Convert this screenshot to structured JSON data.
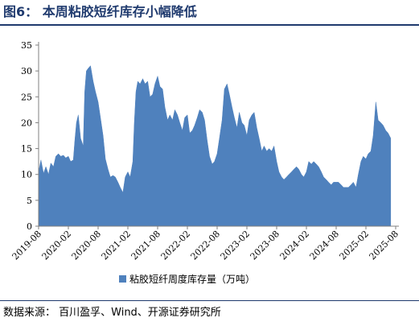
{
  "figure": {
    "title": "图6：  本周粘胶短纤库存小幅降低",
    "source": "数据来源：  百川盈孚、Wind、开源证券研究所"
  },
  "colors": {
    "series": "#4f81bd",
    "title": "#1f3a6e",
    "axis": "#808080"
  },
  "chart_data": {
    "type": "area",
    "title": "",
    "xlabel": "",
    "ylabel": "",
    "ylim": [
      0,
      35
    ],
    "yticks": [
      0,
      5,
      10,
      15,
      20,
      25,
      30,
      35
    ],
    "xlim": [
      "2019-08",
      "2025-08"
    ],
    "xticks": [
      "2019-08",
      "2020-02",
      "2020-08",
      "2021-02",
      "2021-08",
      "2022-02",
      "2022-08",
      "2023-02",
      "2023-08",
      "2024-02",
      "2024-08",
      "2025-02",
      "2025-08"
    ],
    "grid": false,
    "legend_position": "bottom",
    "series": [
      {
        "name": "粘胶短纤周度库存量（万吨）",
        "points": [
          [
            "2019-08",
            10.5
          ],
          [
            "2019-08-15",
            12.8
          ],
          [
            "2019-09",
            10.2
          ],
          [
            "2019-09-15",
            11.5
          ],
          [
            "2019-10",
            10.0
          ],
          [
            "2019-10-15",
            12.2
          ],
          [
            "2019-11",
            11.5
          ],
          [
            "2019-11-15",
            13.5
          ],
          [
            "2019-12",
            14.0
          ],
          [
            "2019-12-15",
            13.5
          ],
          [
            "2020-01",
            13.7
          ],
          [
            "2020-01-15",
            13.2
          ],
          [
            "2020-02",
            13.5
          ],
          [
            "2020-02-15",
            12.5
          ],
          [
            "2020-03",
            12.8
          ],
          [
            "2020-03-10",
            16.5
          ],
          [
            "2020-03-20",
            20.0
          ],
          [
            "2020-04",
            21.5
          ],
          [
            "2020-04-15",
            17.0
          ],
          [
            "2020-05",
            15.5
          ],
          [
            "2020-05-10",
            26.0
          ],
          [
            "2020-05-20",
            30.0
          ],
          [
            "2020-06",
            30.5
          ],
          [
            "2020-06-15",
            31.0
          ],
          [
            "2020-07",
            28.0
          ],
          [
            "2020-07-15",
            26.0
          ],
          [
            "2020-08",
            24.0
          ],
          [
            "2020-08-15",
            21.0
          ],
          [
            "2020-09",
            17.5
          ],
          [
            "2020-09-15",
            13.0
          ],
          [
            "2020-10",
            11.0
          ],
          [
            "2020-10-15",
            9.5
          ],
          [
            "2020-11",
            9.8
          ],
          [
            "2020-11-15",
            9.5
          ],
          [
            "2020-12",
            8.5
          ],
          [
            "2020-12-15",
            7.5
          ],
          [
            "2021-01",
            6.5
          ],
          [
            "2021-01-15",
            9.5
          ],
          [
            "2021-02",
            10.5
          ],
          [
            "2021-02-15",
            9.5
          ],
          [
            "2021-03",
            12.5
          ],
          [
            "2021-03-10",
            20.0
          ],
          [
            "2021-03-20",
            26.0
          ],
          [
            "2021-04",
            28.0
          ],
          [
            "2021-04-15",
            27.5
          ],
          [
            "2021-05",
            28.5
          ],
          [
            "2021-05-15",
            27.5
          ],
          [
            "2021-06",
            28.0
          ],
          [
            "2021-06-15",
            25.0
          ],
          [
            "2021-07",
            25.5
          ],
          [
            "2021-07-15",
            27.5
          ],
          [
            "2021-08",
            29.0
          ],
          [
            "2021-08-15",
            27.0
          ],
          [
            "2021-09",
            26.5
          ],
          [
            "2021-09-15",
            23.0
          ],
          [
            "2021-10",
            20.5
          ],
          [
            "2021-10-15",
            21.5
          ],
          [
            "2021-11",
            20.5
          ],
          [
            "2021-11-15",
            22.5
          ],
          [
            "2021-12",
            21.5
          ],
          [
            "2021-12-15",
            20.0
          ],
          [
            "2022-01",
            18.5
          ],
          [
            "2022-01-15",
            21.0
          ],
          [
            "2022-02",
            21.5
          ],
          [
            "2022-02-15",
            18.0
          ],
          [
            "2022-03",
            18.5
          ],
          [
            "2022-03-15",
            19.5
          ],
          [
            "2022-04",
            21.0
          ],
          [
            "2022-04-15",
            22.5
          ],
          [
            "2022-05",
            22.0
          ],
          [
            "2022-05-15",
            20.5
          ],
          [
            "2022-06",
            16.5
          ],
          [
            "2022-06-15",
            13.5
          ],
          [
            "2022-07",
            12.0
          ],
          [
            "2022-07-15",
            12.5
          ],
          [
            "2022-08",
            14.0
          ],
          [
            "2022-08-15",
            17.0
          ],
          [
            "2022-09",
            20.5
          ],
          [
            "2022-09-15",
            26.5
          ],
          [
            "2022-10",
            27.5
          ],
          [
            "2022-10-15",
            25.5
          ],
          [
            "2022-11",
            23.0
          ],
          [
            "2022-11-15",
            21.0
          ],
          [
            "2022-12",
            19.0
          ],
          [
            "2022-12-15",
            22.0
          ],
          [
            "2023-01",
            20.0
          ],
          [
            "2023-01-15",
            19.5
          ],
          [
            "2023-02",
            17.5
          ],
          [
            "2023-02-15",
            20.5
          ],
          [
            "2023-03",
            21.5
          ],
          [
            "2023-03-15",
            22.0
          ],
          [
            "2023-04",
            19.0
          ],
          [
            "2023-04-15",
            17.0
          ],
          [
            "2023-05",
            14.5
          ],
          [
            "2023-05-15",
            15.5
          ],
          [
            "2023-06",
            14.5
          ],
          [
            "2023-06-15",
            15.0
          ],
          [
            "2023-07",
            14.5
          ],
          [
            "2023-07-15",
            15.5
          ],
          [
            "2023-08",
            12.5
          ],
          [
            "2023-08-15",
            10.5
          ],
          [
            "2023-09",
            9.5
          ],
          [
            "2023-09-15",
            9.0
          ],
          [
            "2023-10",
            9.5
          ],
          [
            "2023-10-15",
            10.0
          ],
          [
            "2023-11",
            10.5
          ],
          [
            "2023-11-15",
            11.0
          ],
          [
            "2023-12",
            11.5
          ],
          [
            "2023-12-15",
            11.0
          ],
          [
            "2024-01",
            10.0
          ],
          [
            "2024-01-15",
            9.5
          ],
          [
            "2024-02",
            10.5
          ],
          [
            "2024-02-15",
            12.5
          ],
          [
            "2024-03",
            12.0
          ],
          [
            "2024-03-15",
            12.5
          ],
          [
            "2024-04",
            12.0
          ],
          [
            "2024-04-15",
            11.5
          ],
          [
            "2024-05",
            10.5
          ],
          [
            "2024-05-15",
            9.5
          ],
          [
            "2024-06",
            9.0
          ],
          [
            "2024-06-15",
            8.5
          ],
          [
            "2024-07",
            8.0
          ],
          [
            "2024-07-15",
            8.5
          ],
          [
            "2024-08",
            8.5
          ],
          [
            "2024-08-15",
            8.5
          ],
          [
            "2024-09",
            8.0
          ],
          [
            "2024-09-15",
            7.5
          ],
          [
            "2024-10",
            7.5
          ],
          [
            "2024-10-15",
            7.5
          ],
          [
            "2024-11",
            8.0
          ],
          [
            "2024-11-15",
            8.5
          ],
          [
            "2024-12",
            7.5
          ],
          [
            "2024-12-15",
            10.0
          ],
          [
            "2025-01",
            12.5
          ],
          [
            "2025-01-15",
            13.5
          ],
          [
            "2025-02",
            13.0
          ],
          [
            "2025-02-15",
            14.0
          ],
          [
            "2025-03",
            14.5
          ],
          [
            "2025-03-15",
            17.5
          ],
          [
            "2025-04",
            24.0
          ],
          [
            "2025-04-15",
            20.5
          ],
          [
            "2025-05",
            20.0
          ],
          [
            "2025-05-15",
            19.5
          ],
          [
            "2025-06",
            18.5
          ],
          [
            "2025-06-15",
            18.0
          ],
          [
            "2025-07",
            17.0
          ]
        ]
      }
    ]
  }
}
